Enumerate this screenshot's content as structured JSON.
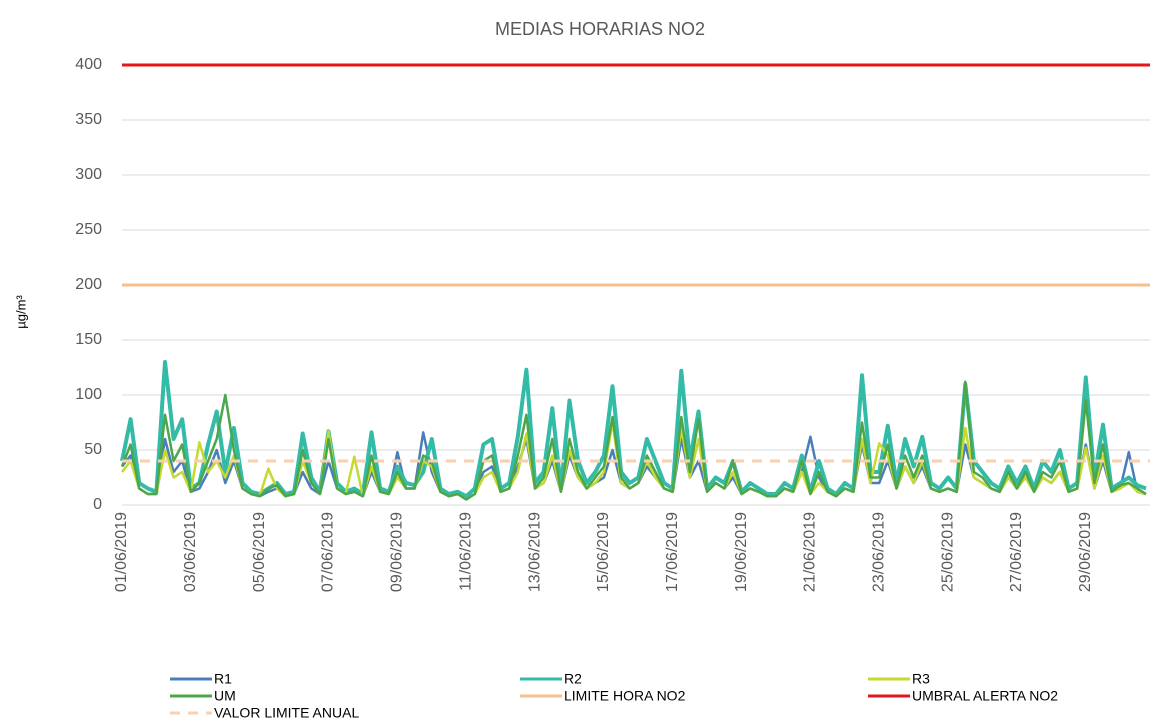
{
  "chart_data": {
    "type": "line",
    "title": "MEDIAS HORARIAS NO2",
    "y_label": "µg/m³",
    "categories": [
      "01/06/2019",
      null,
      null,
      null,
      null,
      null,
      null,
      null,
      "03/06/2019",
      null,
      null,
      null,
      null,
      null,
      null,
      null,
      "05/06/2019",
      null,
      null,
      null,
      null,
      null,
      null,
      null,
      "07/06/2019",
      null,
      null,
      null,
      null,
      null,
      null,
      null,
      "09/06/2019",
      null,
      null,
      null,
      null,
      null,
      null,
      null,
      "11/06/2019",
      null,
      null,
      null,
      null,
      null,
      null,
      null,
      "13/06/2019",
      null,
      null,
      null,
      null,
      null,
      null,
      null,
      "15/06/2019",
      null,
      null,
      null,
      null,
      null,
      null,
      null,
      "17/06/2019",
      null,
      null,
      null,
      null,
      null,
      null,
      null,
      "19/06/2019",
      null,
      null,
      null,
      null,
      null,
      null,
      null,
      "21/06/2019",
      null,
      null,
      null,
      null,
      null,
      null,
      null,
      "23/06/2019",
      null,
      null,
      null,
      null,
      null,
      null,
      null,
      "25/06/2019",
      null,
      null,
      null,
      null,
      null,
      null,
      null,
      "27/06/2019",
      null,
      null,
      null,
      null,
      null,
      null,
      null,
      "29/06/2019",
      null,
      null,
      null,
      null,
      null,
      null,
      null
    ],
    "series": [
      {
        "name": "R1",
        "color": "#4a7ebb",
        "width": 2.5,
        "values": [
          35,
          45,
          15,
          10,
          10,
          60,
          30,
          40,
          12,
          15,
          30,
          50,
          20,
          40,
          15,
          10,
          8,
          12,
          15,
          8,
          10,
          30,
          15,
          10,
          40,
          15,
          10,
          12,
          8,
          30,
          12,
          10,
          48,
          15,
          15,
          66,
          30,
          12,
          8,
          10,
          6,
          10,
          30,
          35,
          12,
          15,
          35,
          60,
          15,
          20,
          40,
          12,
          45,
          25,
          15,
          20,
          25,
          50,
          20,
          15,
          20,
          35,
          25,
          15,
          12,
          60,
          25,
          40,
          12,
          20,
          15,
          25,
          10,
          15,
          12,
          8,
          8,
          15,
          12,
          30,
          62,
          25,
          12,
          8,
          15,
          12,
          55,
          20,
          20,
          40,
          15,
          35,
          20,
          35,
          15,
          12,
          15,
          12,
          55,
          25,
          20,
          15,
          12,
          25,
          15,
          25,
          12,
          25,
          20,
          30,
          12,
          15,
          55,
          15,
          40,
          12,
          15,
          48,
          12,
          10
        ]
      },
      {
        "name": "R2",
        "color": "#33bba8",
        "width": 4,
        "values": [
          40,
          78,
          20,
          15,
          12,
          130,
          60,
          78,
          15,
          20,
          55,
          85,
          30,
          70,
          20,
          12,
          10,
          15,
          20,
          10,
          12,
          65,
          25,
          12,
          67,
          20,
          12,
          15,
          10,
          66,
          15,
          12,
          35,
          20,
          18,
          30,
          60,
          15,
          10,
          12,
          8,
          15,
          55,
          60,
          15,
          20,
          62,
          123,
          20,
          30,
          88,
          15,
          95,
          40,
          20,
          30,
          45,
          108,
          30,
          20,
          25,
          60,
          40,
          20,
          15,
          122,
          40,
          85,
          15,
          25,
          20,
          40,
          12,
          20,
          15,
          10,
          10,
          20,
          15,
          45,
          12,
          40,
          15,
          10,
          20,
          15,
          118,
          30,
          30,
          72,
          20,
          60,
          35,
          62,
          20,
          15,
          25,
          15,
          110,
          40,
          30,
          20,
          15,
          35,
          20,
          35,
          15,
          40,
          30,
          50,
          15,
          20,
          116,
          25,
          73,
          15,
          20,
          25,
          18,
          15
        ]
      },
      {
        "name": "R3",
        "color": "#c5d92f",
        "width": 2.5,
        "values": [
          30,
          40,
          15,
          10,
          10,
          50,
          25,
          30,
          12,
          57,
          30,
          40,
          25,
          45,
          15,
          10,
          8,
          33,
          15,
          8,
          10,
          40,
          20,
          10,
          67,
          15,
          10,
          44,
          8,
          35,
          12,
          10,
          25,
          15,
          15,
          40,
          35,
          12,
          8,
          10,
          5,
          10,
          25,
          30,
          12,
          15,
          30,
          65,
          15,
          20,
          45,
          12,
          50,
          25,
          15,
          20,
          30,
          75,
          20,
          15,
          20,
          40,
          25,
          15,
          12,
          70,
          25,
          60,
          12,
          20,
          15,
          30,
          10,
          15,
          12,
          8,
          8,
          15,
          12,
          30,
          10,
          20,
          12,
          8,
          15,
          12,
          60,
          20,
          56,
          45,
          15,
          35,
          20,
          40,
          15,
          12,
          15,
          12,
          70,
          25,
          20,
          15,
          12,
          25,
          15,
          25,
          12,
          25,
          20,
          30,
          12,
          15,
          52,
          15,
          45,
          12,
          15,
          20,
          12,
          10
        ]
      },
      {
        "name": "UM",
        "color": "#4ca64a",
        "width": 2.5,
        "values": [
          35,
          55,
          15,
          10,
          10,
          82,
          40,
          55,
          12,
          20,
          40,
          60,
          100,
          50,
          15,
          10,
          8,
          15,
          18,
          8,
          10,
          50,
          20,
          10,
          60,
          15,
          10,
          12,
          8,
          45,
          12,
          10,
          30,
          15,
          15,
          45,
          40,
          12,
          8,
          10,
          5,
          10,
          40,
          45,
          12,
          15,
          45,
          82,
          15,
          25,
          60,
          12,
          60,
          30,
          15,
          25,
          35,
          80,
          25,
          15,
          20,
          45,
          30,
          15,
          12,
          80,
          30,
          78,
          12,
          20,
          15,
          40,
          10,
          15,
          12,
          8,
          8,
          15,
          12,
          40,
          10,
          30,
          12,
          8,
          15,
          12,
          75,
          25,
          25,
          55,
          15,
          45,
          25,
          45,
          15,
          12,
          15,
          12,
          112,
          30,
          25,
          15,
          12,
          30,
          15,
          30,
          12,
          30,
          25,
          40,
          12,
          15,
          95,
          20,
          55,
          12,
          18,
          20,
          15,
          10
        ]
      }
    ],
    "reference_lines": [
      {
        "name": "LIMITE HORA NO2",
        "color": "#f7be8e",
        "value": 200,
        "dash": false
      },
      {
        "name": "UMBRAL ALERTA NO2",
        "color": "#e3171c",
        "value": 400,
        "dash": false
      },
      {
        "name": "VALOR LIMITE ANUAL",
        "color": "#f9cfad",
        "value": 40,
        "dash": true
      }
    ],
    "ylim": [
      0,
      400
    ],
    "yticks": [
      0,
      50,
      100,
      150,
      200,
      250,
      300,
      350,
      400
    ],
    "grid": true
  }
}
